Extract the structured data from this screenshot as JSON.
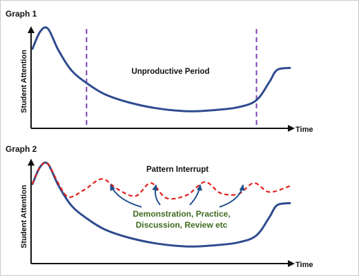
{
  "colors": {
    "attention_curve": "#2e4b8f",
    "interrupt_curve": "#e0201b",
    "divider": "#7b3fb0",
    "arrow": "#1f4e8c",
    "annotation_text": "#3f6b1f",
    "axis": "#111111"
  },
  "chart_data": [
    {
      "type": "line",
      "title": "Graph 1",
      "xlabel": "Time",
      "ylabel": "Student Attention",
      "grid": false,
      "annotations": [
        "Unproductive Period"
      ],
      "dividers_x": [
        0.21,
        0.87
      ],
      "series": [
        {
          "points": [
            [
              0,
              0.79
            ],
            [
              0.03,
              0.96
            ],
            [
              0.06,
              0.99
            ],
            [
              0.1,
              0.78
            ],
            [
              0.15,
              0.58
            ],
            [
              0.21,
              0.45
            ],
            [
              0.28,
              0.34
            ],
            [
              0.37,
              0.26
            ],
            [
              0.48,
              0.2
            ],
            [
              0.6,
              0.17
            ],
            [
              0.7,
              0.18
            ],
            [
              0.8,
              0.21
            ],
            [
              0.87,
              0.28
            ],
            [
              0.92,
              0.46
            ],
            [
              0.95,
              0.58
            ],
            [
              1.0,
              0.6
            ]
          ]
        }
      ]
    },
    {
      "type": "line",
      "title": "Graph 2",
      "xlabel": "Time",
      "ylabel": "Student Attention",
      "grid": false,
      "annotations": [
        "Pattern Interrupt"
      ],
      "callout": [
        "Demonstration, Practice,",
        "Discussion, Review etc"
      ],
      "series": [
        {
          "points": [
            [
              0,
              0.79
            ],
            [
              0.03,
              0.96
            ],
            [
              0.06,
              0.99
            ],
            [
              0.1,
              0.78
            ],
            [
              0.15,
              0.58
            ],
            [
              0.21,
              0.45
            ],
            [
              0.28,
              0.34
            ],
            [
              0.37,
              0.26
            ],
            [
              0.48,
              0.2
            ],
            [
              0.6,
              0.17
            ],
            [
              0.7,
              0.18
            ],
            [
              0.8,
              0.21
            ],
            [
              0.87,
              0.28
            ],
            [
              0.92,
              0.46
            ],
            [
              0.95,
              0.58
            ],
            [
              1.0,
              0.6
            ]
          ]
        },
        {
          "points": [
            [
              0,
              0.79
            ],
            [
              0.03,
              0.96
            ],
            [
              0.06,
              0.99
            ],
            [
              0.1,
              0.8
            ],
            [
              0.14,
              0.66
            ],
            [
              0.2,
              0.73
            ],
            [
              0.27,
              0.84
            ],
            [
              0.33,
              0.74
            ],
            [
              0.4,
              0.67
            ],
            [
              0.46,
              0.8
            ],
            [
              0.52,
              0.65
            ],
            [
              0.6,
              0.68
            ],
            [
              0.67,
              0.81
            ],
            [
              0.73,
              0.7
            ],
            [
              0.8,
              0.69
            ],
            [
              0.86,
              0.8
            ],
            [
              0.92,
              0.71
            ],
            [
              1.0,
              0.77
            ]
          ]
        }
      ]
    }
  ]
}
